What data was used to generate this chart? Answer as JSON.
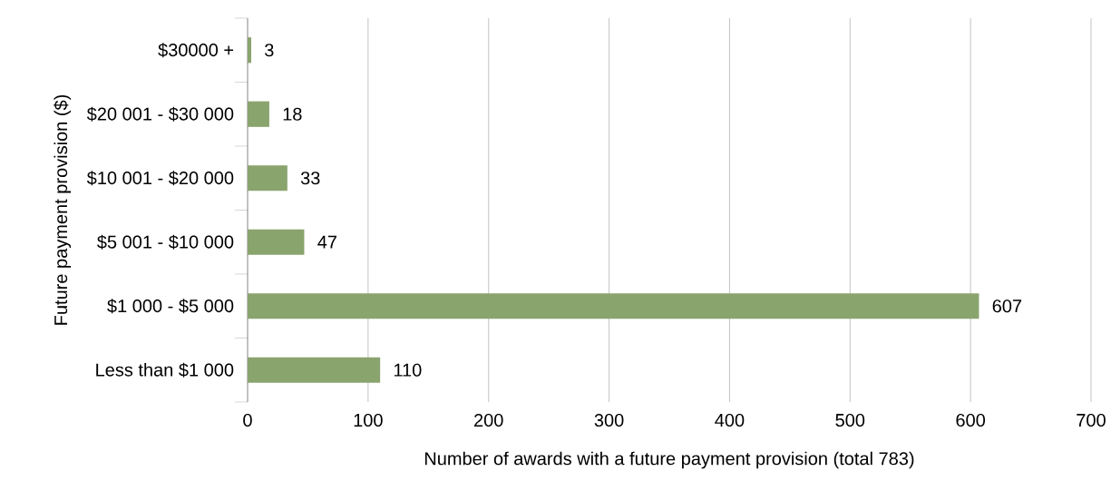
{
  "chart_data": {
    "type": "bar",
    "orientation": "horizontal",
    "xlabel": "Number of awards with a future payment provision (total 783)",
    "ylabel": "Future payment provision ($)",
    "categories": [
      "$30000 +",
      "$20 001 - $30 000",
      "$10 001 - $20 000",
      "$5 001 - $10 000",
      "$1 000 - $5 000",
      "Less than $1 000"
    ],
    "values": [
      3,
      18,
      33,
      47,
      607,
      110
    ],
    "color": "#8aa46e",
    "xlim": [
      0,
      700
    ],
    "xticks": [
      0,
      100,
      200,
      300,
      400,
      500,
      600,
      700
    ],
    "grid": "x",
    "data_labels": true
  }
}
